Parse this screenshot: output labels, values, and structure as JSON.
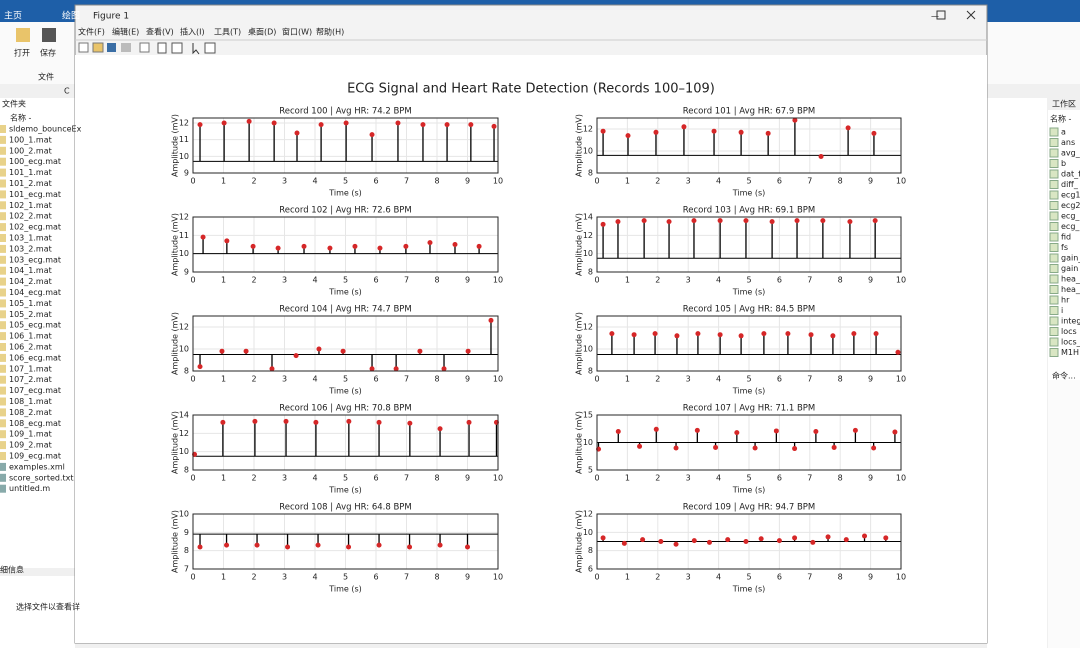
{
  "matlab": {
    "tabs": [
      "主页",
      "绘图"
    ],
    "tools": [
      "打开",
      "保存"
    ],
    "section": "文件",
    "folder_panel": "文件夹",
    "address": "C",
    "column": "名称 -",
    "files": [
      "sldemo_bounceEx",
      "100_1.mat",
      "100_2.mat",
      "100_ecg.mat",
      "101_1.mat",
      "101_2.mat",
      "101_ecg.mat",
      "102_1.mat",
      "102_2.mat",
      "102_ecg.mat",
      "103_1.mat",
      "103_2.mat",
      "103_ecg.mat",
      "104_1.mat",
      "104_2.mat",
      "104_ecg.mat",
      "105_1.mat",
      "105_2.mat",
      "105_ecg.mat",
      "106_1.mat",
      "106_2.mat",
      "106_ecg.mat",
      "107_1.mat",
      "107_2.mat",
      "107_ecg.mat",
      "108_1.mat",
      "108_2.mat",
      "108_ecg.mat",
      "109_1.mat",
      "109_2.mat",
      "109_ecg.mat",
      "examples.xml",
      "score_sorted.txt",
      "untitled.m"
    ],
    "details_title": "细信息",
    "details_text": "选择文件以查看详",
    "workspace_title": "工作区",
    "workspace_column": "名称 -",
    "variables": [
      "a",
      "ans",
      "avg_h",
      "b",
      "dat_f",
      "diff_",
      "ecg1",
      "ecg2",
      "ecg_",
      "ecg_",
      "fid",
      "fs",
      "gain_",
      "gain",
      "hea_f",
      "hea_l",
      "hr",
      "i",
      "integ",
      "locs",
      "locs_",
      "M1H"
    ],
    "history_title": "命令..."
  },
  "figure": {
    "window_title": "Figure 1",
    "menu": [
      "文件(F)",
      "编辑(E)",
      "查看(V)",
      "插入(I)",
      "工具(T)",
      "桌面(D)",
      "窗口(W)",
      "帮助(H)"
    ],
    "suptitle": "ECG Signal and Heart Rate Detection (Records 100–109)"
  },
  "chart_data": [
    {
      "type": "ecg",
      "title": "Record 100 | Avg HR: 74.2 BPM",
      "x_label": "Time (s)",
      "y_label": "Amplitude (mV)",
      "xlim": [
        0,
        10
      ],
      "xticks": [
        0,
        1,
        2,
        3,
        4,
        5,
        6,
        7,
        8,
        9,
        10
      ],
      "ylim": [
        9,
        12.3
      ],
      "yticks": [
        9,
        10,
        11,
        12
      ],
      "grid": true,
      "line_color": "#000000",
      "peak_color": "#d62728",
      "baseline": 9.7,
      "peaks_x": [
        0.23,
        1.02,
        1.84,
        2.66,
        3.41,
        4.2,
        5.02,
        5.87,
        6.72,
        7.54,
        8.33,
        9.11,
        9.87
      ],
      "peaks_y": [
        11.9,
        12.0,
        12.1,
        12.0,
        11.4,
        11.9,
        12.0,
        11.3,
        12.0,
        11.9,
        11.9,
        11.9,
        11.8
      ]
    },
    {
      "type": "ecg",
      "title": "Record 101 | Avg HR: 67.9 BPM",
      "x_label": "Time (s)",
      "y_label": "Amplitude (mV)",
      "xlim": [
        0,
        10
      ],
      "xticks": [
        0,
        1,
        2,
        3,
        4,
        5,
        6,
        7,
        8,
        9,
        10
      ],
      "ylim": [
        8,
        13
      ],
      "yticks": [
        8,
        10,
        12
      ],
      "grid": true,
      "line_color": "#000000",
      "peak_color": "#d62728",
      "baseline": 9.6,
      "peaks_x": [
        0.2,
        1.02,
        1.94,
        2.86,
        3.85,
        4.74,
        5.63,
        6.51,
        7.37,
        8.26,
        9.11
      ],
      "peaks_y": [
        11.8,
        11.4,
        11.7,
        12.2,
        11.8,
        11.7,
        11.6,
        12.8,
        9.5,
        12.1,
        11.6
      ]
    },
    {
      "type": "ecg",
      "title": "Record 102 | Avg HR: 72.6 BPM",
      "x_label": "Time (s)",
      "y_label": "Amplitude (mV)",
      "xlim": [
        0,
        10
      ],
      "xticks": [
        0,
        1,
        2,
        3,
        4,
        5,
        6,
        7,
        8,
        9,
        10
      ],
      "ylim": [
        9,
        12
      ],
      "yticks": [
        9,
        10,
        11,
        12
      ],
      "grid": true,
      "line_color": "#000000",
      "peak_color": "#d62728",
      "baseline": 10.0,
      "peaks_x": [
        0.33,
        1.11,
        1.97,
        2.79,
        3.64,
        4.49,
        5.31,
        6.13,
        6.98,
        7.77,
        8.59,
        9.38
      ],
      "peaks_y": [
        10.9,
        10.7,
        10.4,
        10.3,
        10.4,
        10.3,
        10.4,
        10.3,
        10.4,
        10.6,
        10.5,
        10.4
      ]
    },
    {
      "type": "ecg",
      "title": "Record 103 | Avg HR: 69.1 BPM",
      "x_label": "Time (s)",
      "y_label": "Amplitude (mV)",
      "xlim": [
        0,
        10
      ],
      "xticks": [
        0,
        1,
        2,
        3,
        4,
        5,
        6,
        7,
        8,
        9,
        10
      ],
      "ylim": [
        8,
        14
      ],
      "yticks": [
        8,
        10,
        12,
        14
      ],
      "grid": true,
      "line_color": "#000000",
      "peak_color": "#d62728",
      "baseline": 9.5,
      "peaks_x": [
        0.2,
        0.69,
        1.55,
        2.37,
        3.19,
        4.05,
        4.9,
        5.76,
        6.58,
        7.43,
        8.32,
        9.15
      ],
      "peaks_y": [
        13.2,
        13.5,
        13.6,
        13.5,
        13.6,
        13.6,
        13.6,
        13.5,
        13.6,
        13.6,
        13.5,
        13.6
      ]
    },
    {
      "type": "ecg",
      "title": "Record 104 | Avg HR: 74.7 BPM",
      "x_label": "Time (s)",
      "y_label": "Amplitude (mV)",
      "xlim": [
        0,
        10
      ],
      "xticks": [
        0,
        1,
        2,
        3,
        4,
        5,
        6,
        7,
        8,
        9,
        10
      ],
      "ylim": [
        8,
        13
      ],
      "yticks": [
        8,
        10,
        12
      ],
      "grid": true,
      "line_color": "#000000",
      "peak_color": "#d62728",
      "baseline": 9.5,
      "peaks_x": [
        0.23,
        0.95,
        1.74,
        2.59,
        3.38,
        4.13,
        4.92,
        5.87,
        6.66,
        7.44,
        8.23,
        9.02,
        9.77
      ],
      "peaks_y": [
        8.4,
        9.8,
        9.8,
        8.2,
        9.4,
        10.0,
        9.8,
        8.2,
        8.2,
        9.8,
        8.2,
        9.8,
        12.6
      ]
    },
    {
      "type": "ecg",
      "title": "Record 105 | Avg HR: 84.5 BPM",
      "x_label": "Time (s)",
      "y_label": "Amplitude (mV)",
      "xlim": [
        0,
        10
      ],
      "xticks": [
        0,
        1,
        2,
        3,
        4,
        5,
        6,
        7,
        8,
        9,
        10
      ],
      "ylim": [
        8,
        13
      ],
      "yticks": [
        8,
        10,
        12
      ],
      "grid": true,
      "line_color": "#000000",
      "peak_color": "#d62728",
      "baseline": 9.5,
      "peaks_x": [
        0.49,
        1.22,
        1.91,
        2.63,
        3.32,
        4.05,
        4.74,
        5.49,
        6.28,
        7.04,
        7.76,
        8.45,
        9.18,
        9.9
      ],
      "peaks_y": [
        11.4,
        11.3,
        11.4,
        11.2,
        11.4,
        11.3,
        11.2,
        11.4,
        11.4,
        11.3,
        11.2,
        11.4,
        11.4,
        9.7
      ]
    },
    {
      "type": "ecg",
      "title": "Record 106 | Avg HR: 70.8 BPM",
      "x_label": "Time (s)",
      "y_label": "Amplitude (mV)",
      "xlim": [
        0,
        10
      ],
      "xticks": [
        0,
        1,
        2,
        3,
        4,
        5,
        6,
        7,
        8,
        9,
        10
      ],
      "ylim": [
        8,
        14
      ],
      "yticks": [
        8,
        10,
        12,
        14
      ],
      "grid": true,
      "line_color": "#000000",
      "peak_color": "#d62728",
      "baseline": 9.5,
      "peaks_x": [
        0.05,
        0.98,
        2.03,
        3.05,
        4.03,
        5.11,
        6.1,
        7.11,
        8.1,
        9.05,
        9.95
      ],
      "peaks_y": [
        9.7,
        13.2,
        13.3,
        13.3,
        13.2,
        13.3,
        13.2,
        13.1,
        12.5,
        13.2,
        13.2
      ]
    },
    {
      "type": "ecg",
      "title": "Record 107 | Avg HR: 71.1 BPM",
      "x_label": "Time (s)",
      "y_label": "Amplitude (mV)",
      "xlim": [
        0,
        10
      ],
      "xticks": [
        0,
        1,
        2,
        3,
        4,
        5,
        6,
        7,
        8,
        9,
        10
      ],
      "ylim": [
        5,
        15
      ],
      "yticks": [
        5,
        10,
        15
      ],
      "grid": true,
      "line_color": "#000000",
      "peak_color": "#d62728",
      "baseline": 10,
      "peaks_x": [
        0.05,
        0.7,
        1.4,
        1.95,
        2.6,
        3.3,
        3.9,
        4.6,
        5.2,
        5.9,
        6.5,
        7.2,
        7.8,
        8.5,
        9.1,
        9.8
      ],
      "peaks_y": [
        8.8,
        12.0,
        9.3,
        12.4,
        9.0,
        12.2,
        9.1,
        11.8,
        9.0,
        12.1,
        8.9,
        12.0,
        9.1,
        12.2,
        9.0,
        11.9
      ]
    },
    {
      "type": "ecg",
      "title": "Record 108 | Avg HR: 64.8 BPM",
      "x_label": "Time (s)",
      "y_label": "Amplitude (mV)",
      "xlim": [
        0,
        10
      ],
      "xticks": [
        0,
        1,
        2,
        3,
        4,
        5,
        6,
        7,
        8,
        9,
        10
      ],
      "ylim": [
        7,
        10
      ],
      "yticks": [
        7,
        8,
        9,
        10
      ],
      "grid": true,
      "line_color": "#000000",
      "peak_color": "#d62728",
      "baseline": 8.9,
      "peaks_x": [
        0.23,
        1.1,
        2.1,
        3.1,
        4.1,
        5.1,
        6.1,
        7.1,
        8.1,
        9.0
      ],
      "peaks_y": [
        8.2,
        8.3,
        8.3,
        8.2,
        8.3,
        8.2,
        8.3,
        8.2,
        8.3,
        8.2
      ]
    },
    {
      "type": "ecg",
      "title": "Record 109 | Avg HR: 94.7 BPM",
      "x_label": "Time (s)",
      "y_label": "Amplitude (mV)",
      "xlim": [
        0,
        10
      ],
      "xticks": [
        0,
        1,
        2,
        3,
        4,
        5,
        6,
        7,
        8,
        9,
        10
      ],
      "ylim": [
        6,
        12
      ],
      "yticks": [
        6,
        8,
        10,
        12
      ],
      "grid": true,
      "line_color": "#000000",
      "peak_color": "#d62728",
      "baseline": 9,
      "peaks_x": [
        0.2,
        0.9,
        1.5,
        2.1,
        2.6,
        3.2,
        3.7,
        4.3,
        4.9,
        5.4,
        6.0,
        6.5,
        7.1,
        7.6,
        8.2,
        8.8,
        9.5
      ],
      "peaks_y": [
        9.4,
        8.8,
        9.2,
        9.0,
        8.7,
        9.1,
        8.9,
        9.2,
        9.0,
        9.3,
        9.1,
        9.4,
        8.9,
        9.5,
        9.2,
        9.6,
        9.4
      ]
    }
  ]
}
